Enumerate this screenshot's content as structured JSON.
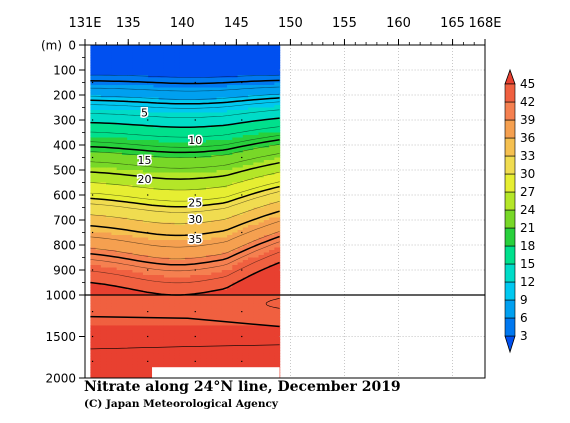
{
  "chart_data": {
    "type": "heatmap",
    "title": "Nitrate along 24°N line, December 2019",
    "credit": "(C) Japan Meteorological Agency",
    "ylabel": "(m)",
    "x_ticks": [
      {
        "value": 131,
        "label": "131E"
      },
      {
        "value": 135,
        "label": "135"
      },
      {
        "value": 140,
        "label": "140"
      },
      {
        "value": 145,
        "label": "145"
      },
      {
        "value": 150,
        "label": "150"
      },
      {
        "value": 155,
        "label": "155"
      },
      {
        "value": 160,
        "label": "160"
      },
      {
        "value": 165,
        "label": "165"
      },
      {
        "value": 168,
        "label": "168E"
      }
    ],
    "y_ticks_upper": [
      "0",
      "100",
      "200",
      "300",
      "400",
      "500",
      "600",
      "700",
      "800",
      "900",
      "1000"
    ],
    "y_ticks_lower": [
      "1500",
      "2000"
    ],
    "xlim": [
      131,
      168
    ],
    "depth_upper": [
      0,
      1000
    ],
    "depth_lower": [
      1000,
      2000
    ],
    "data_extent_lon": [
      131.5,
      149
    ],
    "colorbar": {
      "labels": [
        "3",
        "6",
        "9",
        "12",
        "15",
        "18",
        "21",
        "24",
        "27",
        "30",
        "33",
        "36",
        "39",
        "42",
        "45"
      ],
      "colors": [
        "#0050f0",
        "#0078f0",
        "#00a0f0",
        "#00c8f0",
        "#00dcc8",
        "#00e08c",
        "#28d03c",
        "#78d828",
        "#b4e628",
        "#e6ee32",
        "#f0dc50",
        "#f5c050",
        "#f5a050",
        "#f58050",
        "#f06040",
        "#e84030"
      ]
    },
    "contour_labels": [
      {
        "text": "5",
        "lon": 136.5,
        "depth": 270
      },
      {
        "text": "10",
        "lon": 141.2,
        "depth": 380
      },
      {
        "text": "15",
        "lon": 136.5,
        "depth": 460
      },
      {
        "text": "20",
        "lon": 136.5,
        "depth": 535
      },
      {
        "text": "25",
        "lon": 141.2,
        "depth": 630
      },
      {
        "text": "30",
        "lon": 141.2,
        "depth": 695
      },
      {
        "text": "35",
        "lon": 141.2,
        "depth": 775
      }
    ]
  }
}
